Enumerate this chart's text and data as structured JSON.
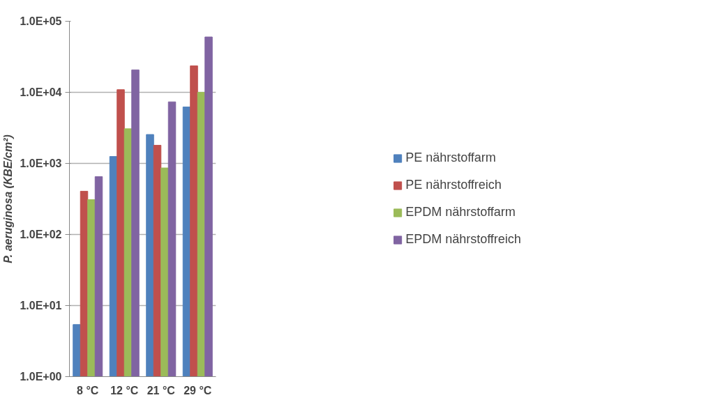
{
  "chart_data": {
    "type": "bar",
    "ylabel": "P. aeruginosa (KBE/cm²)",
    "categories": [
      "8 °C",
      "12 °C",
      "21 °C",
      "29 °C"
    ],
    "log": true,
    "ylim": [
      1,
      100000
    ],
    "yticks": [
      {
        "value": 1,
        "label": "1.0E+00"
      },
      {
        "value": 10,
        "label": "1.0E+01"
      },
      {
        "value": 100,
        "label": "1.0E+02"
      },
      {
        "value": 1000,
        "label": "1.0E+03"
      },
      {
        "value": 10000,
        "label": "1.0E+04"
      },
      {
        "value": 100000,
        "label": "1.0E+05"
      }
    ],
    "grid": "y",
    "legend": "right",
    "series": [
      {
        "name": "PE nährstoffarm",
        "color": "#4f81bd",
        "values": [
          5.4,
          1250,
          2550,
          6230
        ]
      },
      {
        "name": "PE nährstoffreich",
        "color": "#c0504d",
        "values": [
          406,
          10900,
          1800,
          23600
        ]
      },
      {
        "name": "EPDM nährstoffarm",
        "color": "#9bbb59",
        "values": [
          309,
          3070,
          863,
          10000
        ]
      },
      {
        "name": "EPDM nährstoffreich",
        "color": "#8064a2",
        "values": [
          651,
          20700,
          7340,
          60100
        ]
      }
    ]
  }
}
